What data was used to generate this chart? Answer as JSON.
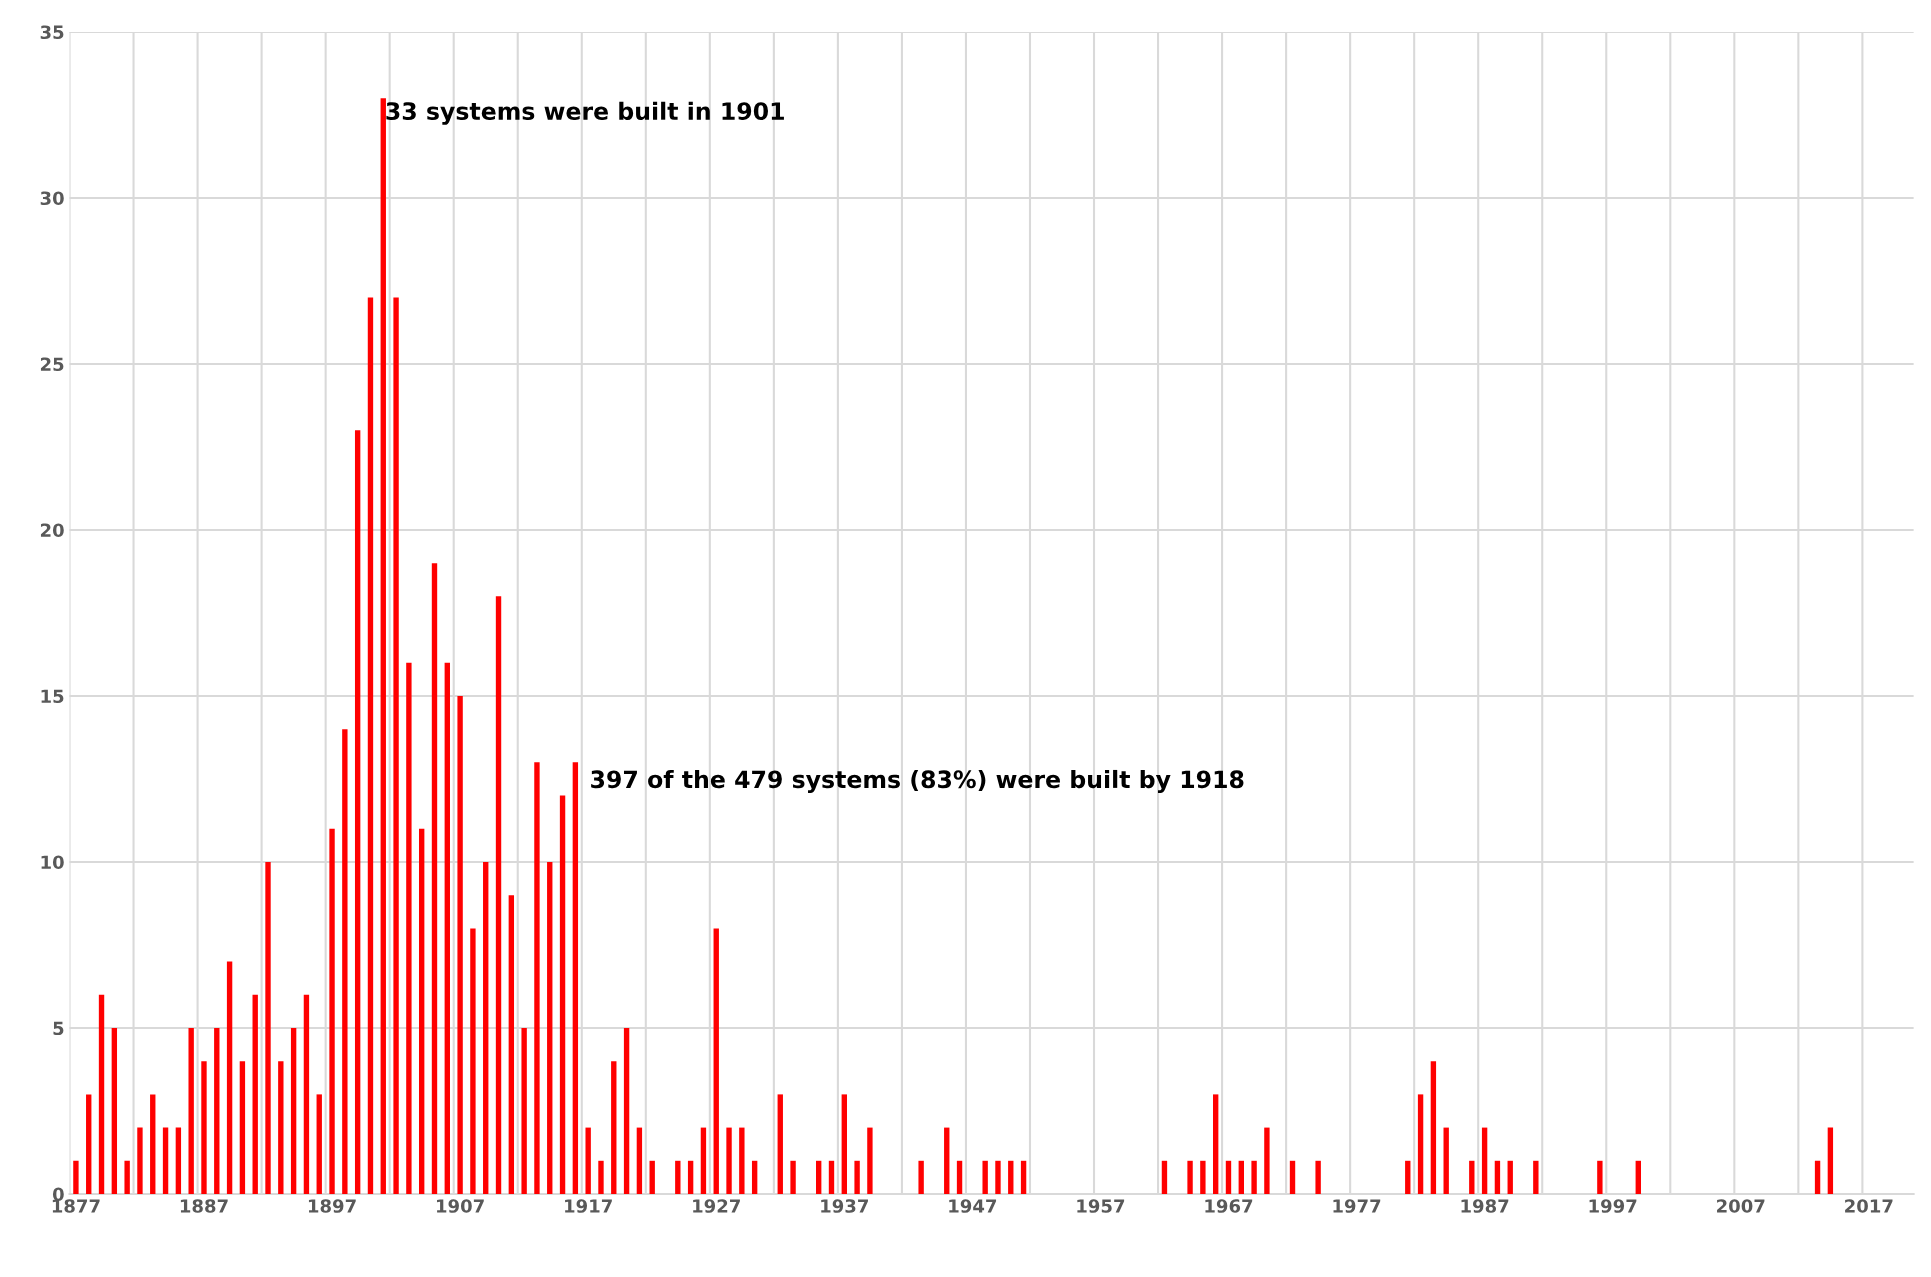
{
  "chart_data": {
    "type": "bar",
    "categories": [
      "1877",
      null,
      null,
      null,
      null,
      null,
      null,
      null,
      null,
      null,
      "1887",
      null,
      null,
      null,
      null,
      null,
      null,
      null,
      null,
      null,
      "1897",
      null,
      null,
      null,
      null,
      null,
      null,
      null,
      null,
      null,
      "1907",
      null,
      null,
      null,
      null,
      null,
      null,
      null,
      null,
      null,
      "1917",
      null,
      null,
      null,
      null,
      null,
      null,
      null,
      null,
      null,
      "1927",
      null,
      null,
      null,
      null,
      null,
      null,
      null,
      null,
      null,
      "1937",
      null,
      null,
      null,
      null,
      null,
      null,
      null,
      null,
      null,
      "1947",
      null,
      null,
      null,
      null,
      null,
      null,
      null,
      null,
      null,
      "1957",
      null,
      null,
      null,
      null,
      null,
      null,
      null,
      null,
      null,
      "1967",
      null,
      null,
      null,
      null,
      null,
      null,
      null,
      null,
      null,
      "1977",
      null,
      null,
      null,
      null,
      null,
      null,
      null,
      null,
      null,
      "1987",
      null,
      null,
      null,
      null,
      null,
      null,
      null,
      null,
      null,
      "1997",
      null,
      null,
      null,
      null,
      null,
      null,
      null,
      null,
      null,
      "2007",
      null,
      null,
      null,
      null,
      null,
      null,
      null,
      null,
      null,
      "2017",
      null,
      null,
      null
    ],
    "values": [
      1,
      3,
      6,
      5,
      1,
      2,
      3,
      2,
      2,
      5,
      4,
      5,
      7,
      4,
      6,
      10,
      4,
      5,
      6,
      3,
      11,
      14,
      23,
      27,
      33,
      27,
      16,
      11,
      19,
      16,
      15,
      8,
      10,
      18,
      9,
      5,
      13,
      10,
      12,
      13,
      2,
      1,
      4,
      5,
      2,
      1,
      0,
      1,
      1,
      2,
      8,
      2,
      2,
      1,
      0,
      3,
      1,
      0,
      1,
      1,
      3,
      1,
      2,
      0,
      0,
      0,
      1,
      0,
      2,
      1,
      0,
      1,
      1,
      1,
      1,
      0,
      0,
      0,
      0,
      0,
      0,
      0,
      0,
      0,
      0,
      1,
      0,
      1,
      1,
      3,
      1,
      1,
      1,
      2,
      0,
      1,
      0,
      1,
      0,
      0,
      0,
      0,
      0,
      0,
      1,
      3,
      4,
      2,
      0,
      1,
      2,
      1,
      1,
      0,
      1,
      0,
      0,
      0,
      0,
      1,
      0,
      0,
      1,
      0,
      0,
      0,
      0,
      0,
      0,
      0,
      0,
      0,
      0,
      0,
      0,
      0,
      1,
      2,
      0,
      0,
      0,
      0,
      0,
      0
    ],
    "color": "#ff0000",
    "ylim": [
      0,
      35
    ],
    "yticks": [
      0,
      5,
      10,
      15,
      20,
      25,
      30,
      35
    ],
    "grid": true,
    "annotations": [
      "33 systems were built in 1901",
      "397 of the 479 systems (83%) were built by 1918"
    ]
  }
}
